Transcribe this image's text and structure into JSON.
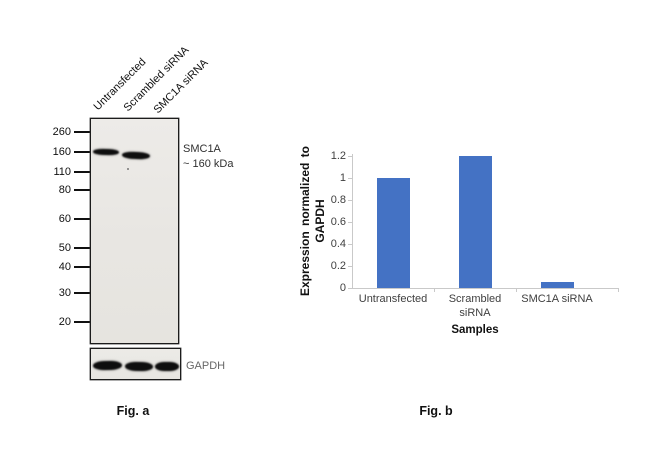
{
  "page": {
    "background": "#ffffff"
  },
  "figure_a": {
    "caption": "Fig. a",
    "lane_labels": [
      "Untransfected",
      "Scrambled siRNA",
      "SMC1A siRNA"
    ],
    "marker_labels": [
      "260",
      "160",
      "110",
      "80",
      "60",
      "50",
      "40",
      "30",
      "20"
    ],
    "target_annotation": {
      "line1": "SMC1A",
      "line2": "~ 160 kDa"
    },
    "loading_control_label": "GAPDH"
  },
  "figure_b": {
    "caption": "Fig. b"
  },
  "chart_data": {
    "type": "bar",
    "categories": [
      "Untransfected",
      "Scrambled\nsiRNA",
      "SMC1A siRNA"
    ],
    "values": [
      1,
      1.2,
      0.05
    ],
    "title": "",
    "xlabel": "Samples",
    "ylabel": "Expression normalized to GAPDH",
    "ylabel_lines": [
      "Expression  normalized to",
      "GAPDH"
    ],
    "ylim": [
      0,
      1.2
    ],
    "yticks": [
      0,
      0.2,
      0.4,
      0.6,
      0.8,
      1,
      1.2
    ],
    "grid": false,
    "legend": "none",
    "bar_color": "#4472C4",
    "axis_color": "#C9C9C9",
    "tick_label_color": "#3F3F3F"
  }
}
